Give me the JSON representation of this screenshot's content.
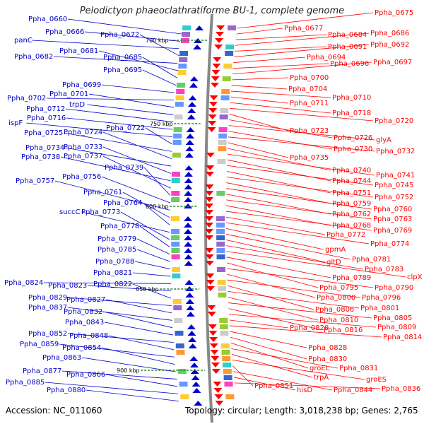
{
  "title": "Pelodictyon phaeoclathratiforme BU-1, complete genome",
  "footer": {
    "accession": "Accession: NC_011060",
    "summary": "Topology: circular; Length: 3,018,238 bp; Genes: 2,765"
  },
  "colors": {
    "minus_strand": "#0000cc",
    "plus_strand": "#ff0000",
    "backbone": "#888888",
    "tick": "#2a8a2a"
  },
  "scale_ticks": [
    "700 kbp",
    "750 kbp",
    "800 kbp",
    "850 kbp",
    "900 kbp"
  ],
  "left_labels": [
    "Ppha_0660",
    "Ppha_0666",
    "panC",
    "Ppha_0672",
    "Ppha_0682",
    "Ppha_0681",
    "Ppha_0685",
    "Ppha_0695",
    "Ppha_0699",
    "Ppha_0702",
    "Ppha_0701",
    "trpD",
    "Ppha_0712",
    "Ppha_0716",
    "ispF",
    "Ppha_0722",
    "Ppha_0725",
    "Ppha_0724",
    "Ppha_0734",
    "Ppha_0733",
    "Ppha_0738",
    "Ppha_0737",
    "Ppha_0739",
    "Ppha_0756",
    "Ppha_0757",
    "Ppha_0761",
    "Ppha_0764",
    "succC",
    "Ppha_0773",
    "Ppha_0778",
    "Ppha_0779",
    "Ppha_0785",
    "Ppha_0788",
    "Ppha_0821",
    "Ppha_0824",
    "Ppha_0823",
    "Ppha_0822",
    "Ppha_0829",
    "Ppha_0827",
    "Ppha_0837",
    "Ppha_0832",
    "Ppha_0843",
    "Ppha_0852",
    "Ppha_0848",
    "Ppha_0859",
    "Ppha_0854",
    "Ppha_0863",
    "Ppha_0877",
    "Ppha_0866",
    "Ppha_0885",
    "Ppha_0880"
  ],
  "right_labels": [
    "Ppha_0675",
    "Ppha_0677",
    "Ppha_0684",
    "Ppha_0686",
    "Ppha_0691",
    "Ppha_0692",
    "Ppha_0694",
    "Ppha_0696",
    "Ppha_0697",
    "Ppha_0700",
    "Ppha_0704",
    "Ppha_0710",
    "Ppha_0711",
    "Ppha_0718",
    "Ppha_0720",
    "Ppha_0723",
    "Ppha_0726",
    "glyA",
    "Ppha_0730",
    "Ppha_0732",
    "Ppha_0735",
    "Ppha_0740",
    "Ppha_0741",
    "Ppha_0744",
    "Ppha_0745",
    "Ppha_0751",
    "Ppha_0752",
    "Ppha_0759",
    "Ppha_0760",
    "Ppha_0762",
    "Ppha_0763",
    "Ppha_0768",
    "Ppha_0769",
    "Ppha_0772",
    "Ppha_0774",
    "gpmA",
    "Ppha_0781",
    "gltD",
    "Ppha_0783",
    "clpX",
    "Ppha_0789",
    "Ppha_0795",
    "Ppha_0790",
    "Ppha_0800",
    "Ppha_0796",
    "Ppha_0806",
    "Ppha_0801",
    "Ppha_0810",
    "Ppha_0805",
    "Ppha_0816",
    "Ppha_0809",
    "Ppha_0820",
    "Ppha_0814",
    "Ppha_0828",
    "Ppha_0830",
    "groEL",
    "Ppha_0831",
    "trpA",
    "groES",
    "Ppha_0851",
    "Ppha_0844",
    "hisD",
    "Ppha_0836"
  ]
}
